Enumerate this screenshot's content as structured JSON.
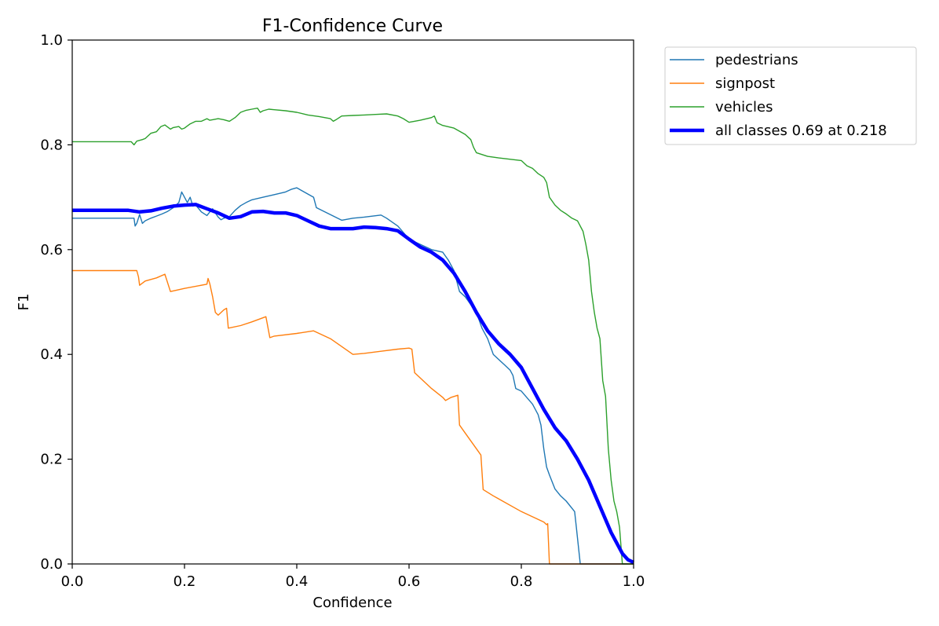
{
  "chart_data": {
    "type": "line",
    "title": "F1-Confidence Curve",
    "xlabel": "Confidence",
    "ylabel": "F1",
    "xlim": [
      0,
      1
    ],
    "ylim": [
      0,
      1
    ],
    "xticks": [
      "0.0",
      "0.2",
      "0.4",
      "0.6",
      "0.8",
      "1.0"
    ],
    "yticks": [
      "0.0",
      "0.2",
      "0.4",
      "0.6",
      "0.8",
      "1.0"
    ],
    "grid": false,
    "legend_position": "outside-top-right",
    "series": [
      {
        "name": "pedestrians",
        "color": "#1f77b4",
        "x": [
          0,
          0.05,
          0.1,
          0.11,
          0.112,
          0.115,
          0.12,
          0.125,
          0.13,
          0.14,
          0.15,
          0.16,
          0.17,
          0.18,
          0.185,
          0.19,
          0.195,
          0.2,
          0.205,
          0.21,
          0.215,
          0.22,
          0.23,
          0.24,
          0.245,
          0.25,
          0.255,
          0.26,
          0.265,
          0.27,
          0.28,
          0.29,
          0.3,
          0.31,
          0.32,
          0.34,
          0.36,
          0.38,
          0.39,
          0.4,
          0.41,
          0.43,
          0.435,
          0.45,
          0.48,
          0.5,
          0.52,
          0.55,
          0.56,
          0.58,
          0.6,
          0.62,
          0.64,
          0.66,
          0.67,
          0.68,
          0.69,
          0.7,
          0.72,
          0.73,
          0.74,
          0.75,
          0.76,
          0.77,
          0.78,
          0.785,
          0.79,
          0.8,
          0.82,
          0.83,
          0.835,
          0.84,
          0.845,
          0.85,
          0.86,
          0.87,
          0.88,
          0.895,
          0.898,
          0.9,
          0.905,
          0.95,
          0.98,
          1.0
        ],
        "y": [
          0.66,
          0.66,
          0.66,
          0.66,
          0.645,
          0.65,
          0.667,
          0.65,
          0.655,
          0.66,
          0.664,
          0.668,
          0.673,
          0.68,
          0.685,
          0.69,
          0.71,
          0.7,
          0.69,
          0.7,
          0.683,
          0.685,
          0.672,
          0.665,
          0.672,
          0.678,
          0.67,
          0.662,
          0.657,
          0.66,
          0.663,
          0.675,
          0.684,
          0.69,
          0.695,
          0.7,
          0.705,
          0.71,
          0.715,
          0.718,
          0.712,
          0.7,
          0.68,
          0.672,
          0.656,
          0.66,
          0.662,
          0.666,
          0.66,
          0.645,
          0.62,
          0.61,
          0.6,
          0.595,
          0.58,
          0.56,
          0.52,
          0.51,
          0.48,
          0.45,
          0.43,
          0.4,
          0.39,
          0.38,
          0.37,
          0.36,
          0.335,
          0.33,
          0.305,
          0.285,
          0.265,
          0.22,
          0.185,
          0.17,
          0.143,
          0.13,
          0.12,
          0.1,
          0.07,
          0.05,
          0,
          0,
          0,
          0
        ]
      },
      {
        "name": "signpost",
        "color": "#ff7f0e",
        "x": [
          0,
          0.05,
          0.1,
          0.115,
          0.118,
          0.12,
          0.13,
          0.15,
          0.165,
          0.175,
          0.2,
          0.24,
          0.242,
          0.245,
          0.25,
          0.255,
          0.26,
          0.27,
          0.275,
          0.278,
          0.3,
          0.32,
          0.345,
          0.352,
          0.36,
          0.4,
          0.43,
          0.46,
          0.5,
          0.52,
          0.55,
          0.58,
          0.6,
          0.605,
          0.61,
          0.62,
          0.64,
          0.66,
          0.665,
          0.675,
          0.687,
          0.69,
          0.7,
          0.72,
          0.728,
          0.732,
          0.75,
          0.8,
          0.84,
          0.845,
          0.847,
          0.85,
          0.88,
          0.9,
          1.0
        ],
        "y": [
          0.56,
          0.56,
          0.56,
          0.56,
          0.548,
          0.532,
          0.54,
          0.546,
          0.553,
          0.52,
          0.526,
          0.534,
          0.545,
          0.535,
          0.51,
          0.48,
          0.475,
          0.485,
          0.488,
          0.45,
          0.455,
          0.462,
          0.472,
          0.432,
          0.435,
          0.44,
          0.445,
          0.43,
          0.4,
          0.402,
          0.406,
          0.41,
          0.412,
          0.41,
          0.365,
          0.355,
          0.335,
          0.318,
          0.312,
          0.318,
          0.322,
          0.265,
          0.25,
          0.22,
          0.208,
          0.142,
          0.13,
          0.1,
          0.08,
          0.075,
          0.077,
          0,
          0,
          0,
          0
        ]
      },
      {
        "name": "vehicles",
        "color": "#2ca02c",
        "x": [
          0,
          0.05,
          0.1,
          0.105,
          0.11,
          0.115,
          0.125,
          0.13,
          0.14,
          0.15,
          0.158,
          0.165,
          0.175,
          0.18,
          0.19,
          0.195,
          0.2,
          0.21,
          0.22,
          0.23,
          0.24,
          0.245,
          0.25,
          0.26,
          0.27,
          0.28,
          0.29,
          0.3,
          0.31,
          0.32,
          0.33,
          0.335,
          0.34,
          0.35,
          0.36,
          0.38,
          0.4,
          0.42,
          0.44,
          0.46,
          0.465,
          0.47,
          0.48,
          0.5,
          0.52,
          0.54,
          0.56,
          0.58,
          0.59,
          0.6,
          0.62,
          0.64,
          0.645,
          0.65,
          0.66,
          0.68,
          0.7,
          0.71,
          0.715,
          0.72,
          0.74,
          0.76,
          0.8,
          0.81,
          0.82,
          0.83,
          0.84,
          0.845,
          0.85,
          0.86,
          0.87,
          0.88,
          0.89,
          0.9,
          0.91,
          0.915,
          0.92,
          0.925,
          0.93,
          0.935,
          0.94,
          0.945,
          0.95,
          0.955,
          0.96,
          0.965,
          0.97,
          0.975,
          0.98,
          0.985,
          0.99,
          1.0
        ],
        "y": [
          0.806,
          0.806,
          0.806,
          0.806,
          0.8,
          0.807,
          0.81,
          0.812,
          0.822,
          0.825,
          0.835,
          0.838,
          0.83,
          0.833,
          0.835,
          0.83,
          0.832,
          0.84,
          0.845,
          0.845,
          0.85,
          0.847,
          0.848,
          0.85,
          0.848,
          0.845,
          0.852,
          0.862,
          0.866,
          0.868,
          0.87,
          0.862,
          0.865,
          0.868,
          0.867,
          0.865,
          0.862,
          0.857,
          0.854,
          0.85,
          0.845,
          0.848,
          0.855,
          0.856,
          0.857,
          0.858,
          0.859,
          0.855,
          0.85,
          0.843,
          0.847,
          0.852,
          0.855,
          0.842,
          0.837,
          0.832,
          0.82,
          0.81,
          0.795,
          0.785,
          0.778,
          0.775,
          0.77,
          0.76,
          0.755,
          0.745,
          0.738,
          0.728,
          0.7,
          0.685,
          0.675,
          0.668,
          0.66,
          0.655,
          0.635,
          0.61,
          0.58,
          0.52,
          0.48,
          0.45,
          0.43,
          0.35,
          0.32,
          0.22,
          0.16,
          0.12,
          0.1,
          0.07,
          0,
          0,
          0,
          0
        ]
      },
      {
        "name": "all classes 0.69 at 0.218",
        "color": "#0000ff",
        "bold": true,
        "x": [
          0,
          0.05,
          0.1,
          0.12,
          0.14,
          0.16,
          0.18,
          0.2,
          0.22,
          0.24,
          0.26,
          0.28,
          0.3,
          0.32,
          0.34,
          0.36,
          0.38,
          0.4,
          0.42,
          0.44,
          0.46,
          0.48,
          0.5,
          0.52,
          0.54,
          0.56,
          0.58,
          0.6,
          0.62,
          0.64,
          0.66,
          0.68,
          0.7,
          0.72,
          0.74,
          0.76,
          0.78,
          0.8,
          0.82,
          0.84,
          0.86,
          0.88,
          0.9,
          0.92,
          0.94,
          0.96,
          0.98,
          0.99,
          1.0
        ],
        "y": [
          0.675,
          0.675,
          0.675,
          0.672,
          0.674,
          0.679,
          0.683,
          0.685,
          0.686,
          0.678,
          0.67,
          0.66,
          0.663,
          0.672,
          0.673,
          0.67,
          0.67,
          0.665,
          0.655,
          0.645,
          0.64,
          0.64,
          0.64,
          0.643,
          0.642,
          0.64,
          0.636,
          0.62,
          0.605,
          0.595,
          0.58,
          0.555,
          0.52,
          0.48,
          0.445,
          0.42,
          0.4,
          0.375,
          0.335,
          0.295,
          0.26,
          0.235,
          0.2,
          0.16,
          0.11,
          0.06,
          0.02,
          0.008,
          0.003
        ]
      }
    ]
  }
}
